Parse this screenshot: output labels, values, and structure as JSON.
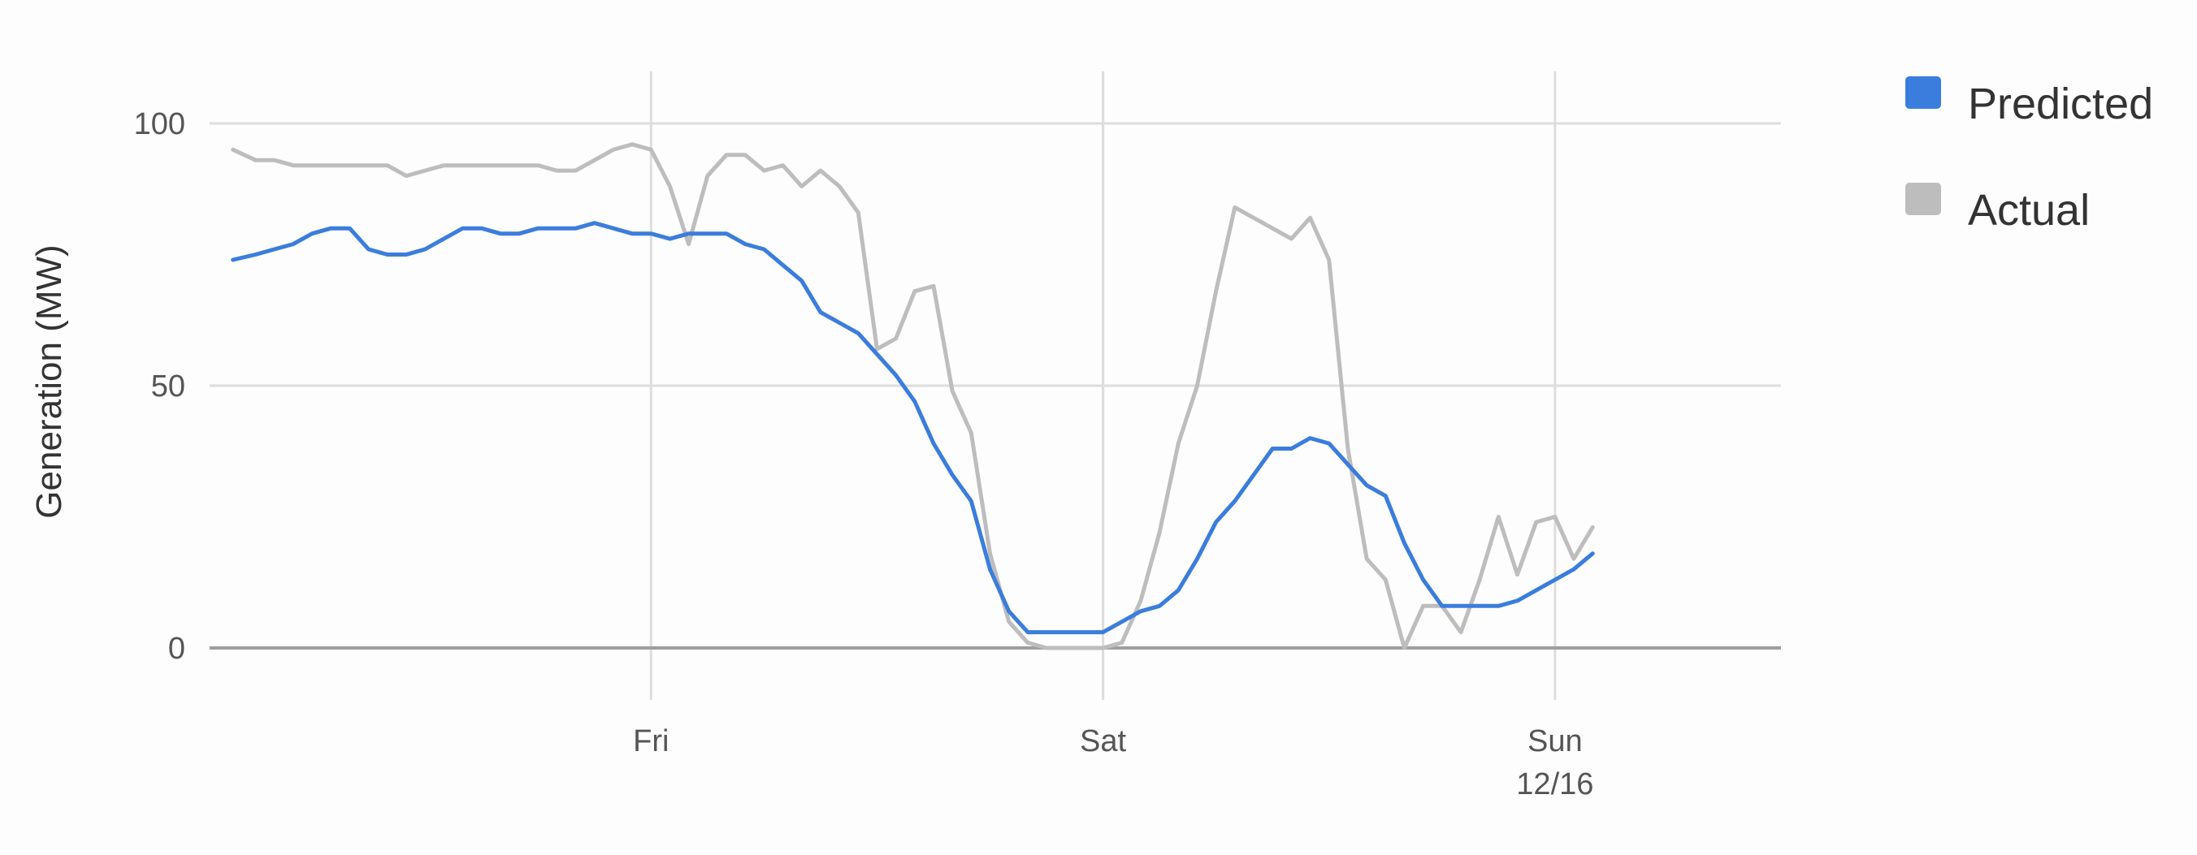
{
  "chart_data": {
    "type": "line",
    "title": "",
    "xlabel": "",
    "ylabel": "Generation (MW)",
    "ylim": [
      0,
      100
    ],
    "y_ticks": [
      0,
      50,
      100
    ],
    "x_ticks": [
      {
        "hour": 24,
        "label": "Fri",
        "sublabel": ""
      },
      {
        "hour": 48,
        "label": "Sat",
        "sublabel": ""
      },
      {
        "hour": 72,
        "label": "Sun",
        "sublabel": "12/16"
      }
    ],
    "xlim_hours": [
      0,
      84
    ],
    "grid": true,
    "legend_position": "top-right",
    "series": [
      {
        "name": "Predicted",
        "color": "#3b7ddd",
        "points": [
          [
            1.8,
            74
          ],
          [
            3,
            75
          ],
          [
            4,
            76
          ],
          [
            5,
            77
          ],
          [
            6,
            79
          ],
          [
            7,
            80
          ],
          [
            8,
            80
          ],
          [
            9,
            76
          ],
          [
            10,
            75
          ],
          [
            11,
            75
          ],
          [
            12,
            76
          ],
          [
            13,
            78
          ],
          [
            14,
            80
          ],
          [
            15,
            80
          ],
          [
            16,
            79
          ],
          [
            17,
            79
          ],
          [
            18,
            80
          ],
          [
            19,
            80
          ],
          [
            20,
            80
          ],
          [
            21,
            81
          ],
          [
            22,
            80
          ],
          [
            23,
            79
          ],
          [
            24,
            79
          ],
          [
            25,
            78
          ],
          [
            26,
            79
          ],
          [
            27,
            79
          ],
          [
            28,
            79
          ],
          [
            29,
            77
          ],
          [
            30,
            76
          ],
          [
            31,
            73
          ],
          [
            32,
            70
          ],
          [
            33,
            64
          ],
          [
            34,
            62
          ],
          [
            35,
            60
          ],
          [
            36,
            56
          ],
          [
            37,
            52
          ],
          [
            38,
            47
          ],
          [
            39,
            39
          ],
          [
            40,
            33
          ],
          [
            41,
            28
          ],
          [
            42,
            15
          ],
          [
            43,
            7
          ],
          [
            44,
            3
          ],
          [
            45,
            3
          ],
          [
            46,
            3
          ],
          [
            47,
            3
          ],
          [
            48,
            3
          ],
          [
            49,
            5
          ],
          [
            50,
            7
          ],
          [
            51,
            8
          ],
          [
            52,
            11
          ],
          [
            53,
            17
          ],
          [
            54,
            24
          ],
          [
            55,
            28
          ],
          [
            56,
            33
          ],
          [
            57,
            38
          ],
          [
            58,
            38
          ],
          [
            59,
            40
          ],
          [
            60,
            39
          ],
          [
            61,
            35
          ],
          [
            62,
            31
          ],
          [
            63,
            29
          ],
          [
            64,
            20
          ],
          [
            65,
            13
          ],
          [
            66,
            8
          ],
          [
            67,
            8
          ],
          [
            68,
            8
          ],
          [
            69,
            8
          ],
          [
            70,
            9
          ],
          [
            71,
            11
          ],
          [
            72,
            13
          ],
          [
            73,
            15
          ],
          [
            74,
            18
          ]
        ]
      },
      {
        "name": "Actual",
        "color": "#bdbdbd",
        "points": [
          [
            1.8,
            95
          ],
          [
            3,
            93
          ],
          [
            4,
            93
          ],
          [
            5,
            92
          ],
          [
            6,
            92
          ],
          [
            7,
            92
          ],
          [
            8,
            92
          ],
          [
            9,
            92
          ],
          [
            10,
            92
          ],
          [
            11,
            90
          ],
          [
            12,
            91
          ],
          [
            13,
            92
          ],
          [
            14,
            92
          ],
          [
            15,
            92
          ],
          [
            16,
            92
          ],
          [
            17,
            92
          ],
          [
            18,
            92
          ],
          [
            19,
            91
          ],
          [
            20,
            91
          ],
          [
            21,
            93
          ],
          [
            22,
            95
          ],
          [
            23,
            96
          ],
          [
            24,
            95
          ],
          [
            25,
            88
          ],
          [
            26,
            77
          ],
          [
            27,
            90
          ],
          [
            28,
            94
          ],
          [
            29,
            94
          ],
          [
            30,
            91
          ],
          [
            31,
            92
          ],
          [
            32,
            88
          ],
          [
            33,
            91
          ],
          [
            34,
            88
          ],
          [
            35,
            83
          ],
          [
            36,
            57
          ],
          [
            37,
            59
          ],
          [
            38,
            68
          ],
          [
            39,
            69
          ],
          [
            40,
            49
          ],
          [
            41,
            41
          ],
          [
            42,
            18
          ],
          [
            43,
            5
          ],
          [
            44,
            1
          ],
          [
            45,
            0
          ],
          [
            46,
            0
          ],
          [
            47,
            0
          ],
          [
            48,
            0
          ],
          [
            49,
            1
          ],
          [
            50,
            9
          ],
          [
            51,
            22
          ],
          [
            52,
            39
          ],
          [
            53,
            50
          ],
          [
            54,
            68
          ],
          [
            55,
            84
          ],
          [
            56,
            82
          ],
          [
            57,
            80
          ],
          [
            58,
            78
          ],
          [
            59,
            82
          ],
          [
            60,
            74
          ],
          [
            61,
            38
          ],
          [
            62,
            17
          ],
          [
            63,
            13
          ],
          [
            64,
            0
          ],
          [
            65,
            8
          ],
          [
            66,
            8
          ],
          [
            67,
            3
          ],
          [
            68,
            13
          ],
          [
            69,
            25
          ],
          [
            70,
            14
          ],
          [
            71,
            24
          ],
          [
            72,
            25
          ],
          [
            73,
            17
          ],
          [
            74,
            23
          ]
        ]
      }
    ]
  }
}
